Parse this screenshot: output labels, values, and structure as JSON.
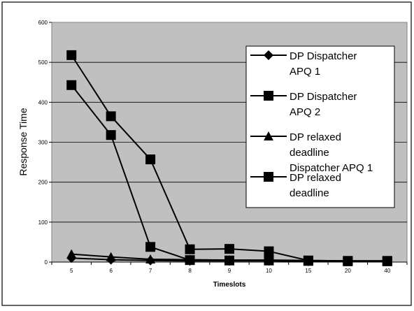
{
  "chart_data": {
    "type": "line",
    "title": "",
    "xlabel": "Timeslots",
    "ylabel": "Response Time",
    "categories": [
      "5",
      "6",
      "7",
      "8",
      "9",
      "10",
      "15",
      "20",
      "40"
    ],
    "ylim": [
      0,
      600
    ],
    "yticks": [
      "0",
      "100",
      "200",
      "300",
      "400",
      "500",
      "600"
    ],
    "grid": true,
    "legend_position": "right",
    "series": [
      {
        "name": "DP Dispatcher APQ 1",
        "marker": "diamond",
        "values": [
          10,
          6,
          4,
          3,
          3,
          3,
          2,
          2,
          2
        ]
      },
      {
        "name": "DP Dispatcher APQ 2",
        "marker": "square",
        "values": [
          443,
          318,
          38,
          5,
          4,
          4,
          3,
          2,
          2
        ]
      },
      {
        "name": "DP relaxed deadline Dispatcher APQ 1",
        "marker": "triangle",
        "values": [
          20,
          13,
          7,
          6,
          5,
          5,
          4,
          3,
          3
        ]
      },
      {
        "name": "DP relaxed deadline",
        "marker": "square",
        "values": [
          518,
          365,
          257,
          32,
          33,
          27,
          4,
          3,
          3
        ]
      }
    ],
    "legend_lines": [
      [
        "DP Dispatcher",
        "APQ 1"
      ],
      [
        "DP Dispatcher",
        "APQ 2"
      ],
      [
        "DP relaxed",
        "deadline",
        "Dispatcher APQ 1"
      ],
      [
        "DP relaxed",
        "deadline"
      ]
    ],
    "colors": {
      "plot_area": "#c0c0c0",
      "line": "#000000",
      "legend_bg": "#ffffff"
    }
  }
}
